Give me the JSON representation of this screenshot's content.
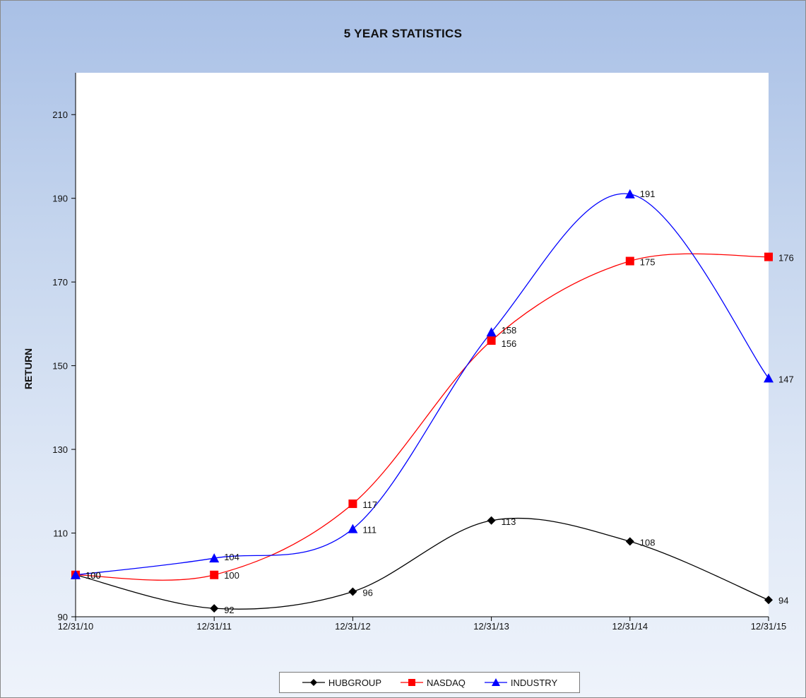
{
  "chart_data": {
    "type": "line",
    "title": "5 YEAR STATISTICS",
    "xlabel": "",
    "ylabel": "RETURN",
    "categories": [
      "12/31/10",
      "12/31/11",
      "12/31/12",
      "12/31/13",
      "12/31/14",
      "12/31/15"
    ],
    "ylim": [
      90,
      220
    ],
    "yticks": [
      90,
      110,
      130,
      150,
      170,
      190,
      210
    ],
    "grid": false,
    "legend_position": "bottom",
    "series": [
      {
        "name": "HUBGROUP",
        "values": [
          100,
          92,
          96,
          113,
          108,
          94
        ],
        "color": "#000000",
        "marker": "diamond"
      },
      {
        "name": "NASDAQ",
        "values": [
          100,
          100,
          117,
          156,
          175,
          176
        ],
        "color": "#ff0000",
        "marker": "square"
      },
      {
        "name": "INDUSTRY",
        "values": [
          100,
          104,
          111,
          158,
          191,
          147
        ],
        "color": "#0000ff",
        "marker": "triangle"
      }
    ]
  }
}
